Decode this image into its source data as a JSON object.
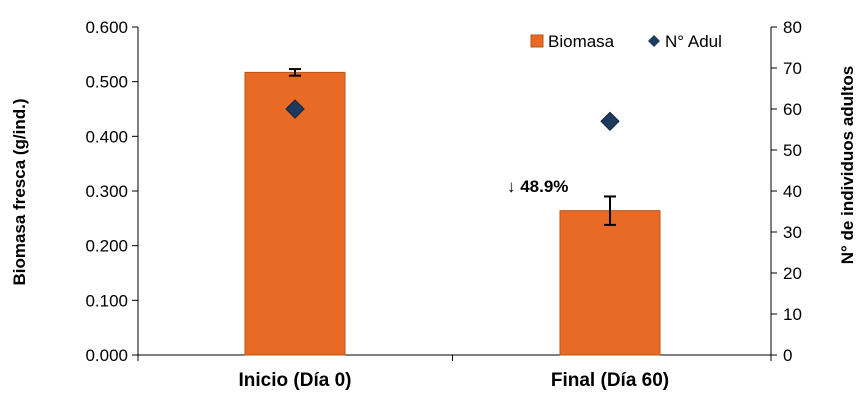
{
  "chart_data": {
    "type": "bar",
    "categories": [
      "Inicio (Día 0)",
      "Final (Día 60)"
    ],
    "series": [
      {
        "name": "Biomasa",
        "kind": "bar",
        "axis": "left",
        "values": [
          0.517,
          0.264
        ],
        "error": [
          0.006,
          0.026
        ],
        "color": "#E86A24"
      },
      {
        "name": "N° Adul",
        "kind": "scatter",
        "marker": "diamond",
        "axis": "right",
        "values": [
          60,
          57
        ],
        "color": "#1F3A5F"
      }
    ],
    "ylabel": "Biomasa fresca (g/ind.)",
    "ylim": [
      0,
      0.6
    ],
    "yticks": [
      "0.000",
      "0.100",
      "0.200",
      "0.300",
      "0.400",
      "0.500",
      "0.600"
    ],
    "y2label": "N° de individuos adultos",
    "y2lim": [
      0,
      80
    ],
    "y2ticks": [
      "0",
      "10",
      "20",
      "30",
      "40",
      "50",
      "60",
      "70",
      "80"
    ],
    "grid": false,
    "legend_position": "top-right",
    "annotation": {
      "text": "↓ 48.9%",
      "near_category": 1,
      "y_value": 0.35
    }
  }
}
